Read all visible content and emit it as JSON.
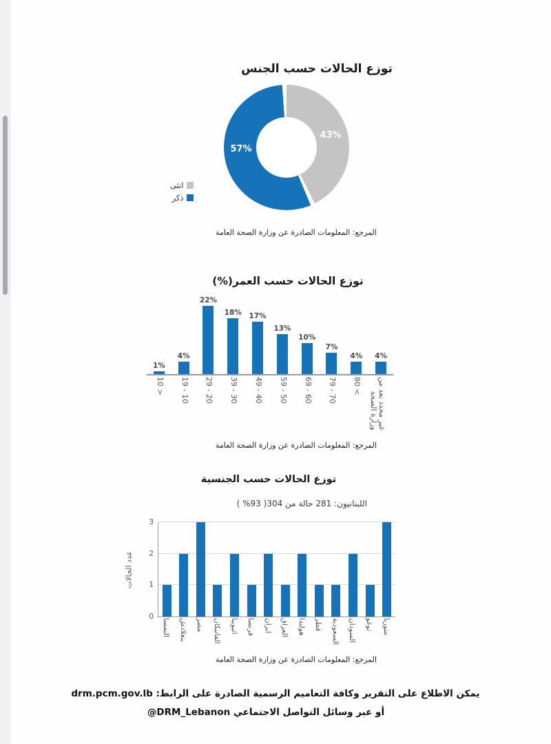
{
  "page": {
    "source_note": "المرجع: المعلومات الصادرة عن وزارة الصحة العامة",
    "footer": {
      "line1_text": "يمكن الاطلاع على التقرير وكافة التعاميم الرسمية الصادرة على الرابط:",
      "line1_link": "drm.pcm.gov.lb",
      "line2_text": "أو عبر وسائل التواصل الاجتماعي",
      "line2_handle": "@DRM_Lebanon"
    }
  },
  "colors": {
    "bar_blue": "#1673b9",
    "slice_gray": "#c4c4c4",
    "gridline": "#d8d8d8",
    "axis_gray": "#9a9a9a"
  },
  "chart_data": [
    {
      "type": "pie",
      "subtype": "donut",
      "title": "توزع الحالات حسب الجنس",
      "slices": [
        {
          "label": "انثى",
          "value_pct": 43,
          "data_label": "43%",
          "color": "#c4c4c4"
        },
        {
          "label": "ذكر",
          "value_pct": 57,
          "data_label": "57%",
          "color": "#1673b9"
        }
      ],
      "legend_position": "left",
      "source": "المرجع: المعلومات الصادرة عن وزارة الصحة العامة"
    },
    {
      "type": "bar",
      "title": "توزع الحالات حسب العمر(%)",
      "categories": [
        "< 10",
        "10 - 19",
        "20 - 29",
        "30 - 39",
        "40 - 49",
        "50 - 59",
        "60 - 69",
        "70 - 79",
        "> 80",
        "غير محدد بعد من\nوزارة الصحة"
      ],
      "values": [
        1,
        4,
        22,
        18,
        17,
        13,
        10,
        7,
        4,
        4
      ],
      "value_labels": [
        "1%",
        "4%",
        "22%",
        "18%",
        "17%",
        "13%",
        "10%",
        "7%",
        "4%",
        "4%"
      ],
      "ylim": [
        0,
        22
      ],
      "grid": false,
      "bar_color": "#1673b9",
      "source": "المرجع: المعلومات الصادرة عن وزارة الصحة العامة"
    },
    {
      "type": "bar",
      "title": "توزع الحالات حسب الجنسية",
      "subtitle": "اللبنانيون: 281 حالة من 304( 93% )",
      "ylabel": "عدد الحالات",
      "categories": [
        "النمسا",
        "بنغلادش",
        "مصر",
        "الفاتيكان",
        "اثيوبيا",
        "فرنسا",
        "ايران",
        "العراق",
        "هولندا",
        "قطر",
        "السعودية",
        "السودان",
        "توغو",
        "سوريا"
      ],
      "values": [
        1,
        2,
        3,
        1,
        2,
        1,
        2,
        1,
        2,
        1,
        1,
        2,
        1,
        3
      ],
      "yticks": [
        0,
        1,
        2,
        3
      ],
      "ylim": [
        0,
        3
      ],
      "grid": true,
      "bar_color": "#1673b9",
      "source": "المرجع: المعلومات الصادرة عن وزارة الصحة العامة"
    }
  ]
}
